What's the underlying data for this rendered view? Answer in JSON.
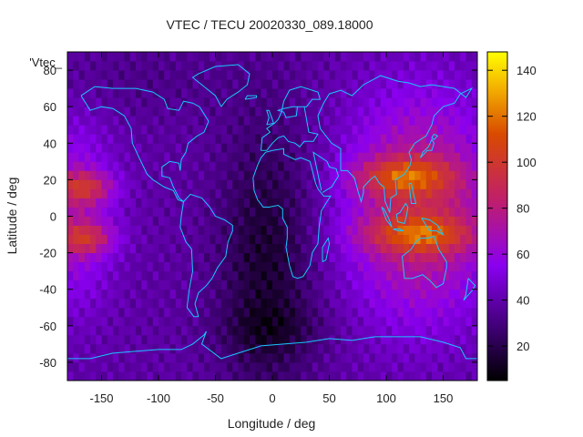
{
  "chart_data": {
    "type": "heatmap",
    "title": "VTEC / TECU 20020330_089.18000",
    "xlabel": "Longitude / deg",
    "ylabel": "Latitude / deg",
    "legend_label": "'Vtec_",
    "xlim": [
      -180,
      180
    ],
    "ylim": [
      -90,
      90
    ],
    "x_ticks": [
      -150,
      -100,
      -50,
      0,
      50,
      100,
      150
    ],
    "y_ticks": [
      -80,
      -60,
      -40,
      -20,
      0,
      20,
      40,
      60,
      80
    ],
    "colorbar": {
      "range": [
        5,
        148
      ],
      "ticks": [
        20,
        40,
        60,
        80,
        100,
        120,
        140
      ],
      "palette": "black-purple-red-yellow"
    },
    "features": [
      {
        "lon": 110,
        "lat": 22,
        "value": 110,
        "note": "northern equatorial anomaly crest (Asia)"
      },
      {
        "lon": 130,
        "lat": -10,
        "value": 105,
        "note": "southern equatorial anomaly crest (Australia)"
      },
      {
        "lon": -165,
        "lat": 15,
        "value": 100,
        "note": "northern crest (Pacific)"
      },
      {
        "lon": -165,
        "lat": -12,
        "value": 100,
        "note": "southern crest (Pacific)"
      },
      {
        "lon": 0,
        "lat": -60,
        "value": 8,
        "note": "night-side minimum"
      }
    ]
  }
}
